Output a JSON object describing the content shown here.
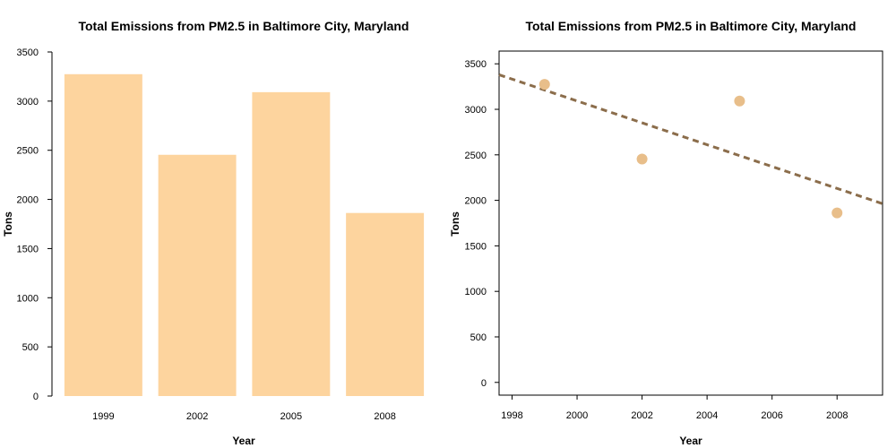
{
  "chart_data": [
    {
      "type": "bar",
      "title": "Total Emissions from PM2.5 in Baltimore City, Maryland",
      "xlabel": "Year",
      "ylabel": "Tons",
      "categories": [
        "1999",
        "2002",
        "2005",
        "2008"
      ],
      "values": [
        3274,
        2454,
        3091,
        1862
      ],
      "ylim": [
        0,
        3500
      ],
      "yticks": [
        0,
        500,
        1000,
        1500,
        2000,
        2500,
        3000,
        3500
      ],
      "bar_color": "#fdd49e",
      "grid": false
    },
    {
      "type": "scatter",
      "title": "Total Emissions from PM2.5 in Baltimore City, Maryland",
      "xlabel": "Year",
      "ylabel": "Tons",
      "x": [
        1999,
        2002,
        2005,
        2008
      ],
      "y": [
        3274,
        2454,
        3091,
        1862
      ],
      "xlim": [
        1997.6,
        2009.4
      ],
      "ylim": [
        -140,
        3640
      ],
      "xticks": [
        1998,
        2000,
        2002,
        2004,
        2006,
        2008
      ],
      "yticks": [
        0,
        500,
        1000,
        1500,
        2000,
        2500,
        3000,
        3500
      ],
      "point_color": "#e8be8a",
      "trend_line": {
        "style": "dashed",
        "color": "#8b6d4b",
        "intercept_at_x0": 3380,
        "x0": 1997.6,
        "end_value_at_x1": 1963,
        "x1": 2009.4
      },
      "grid": false
    }
  ]
}
